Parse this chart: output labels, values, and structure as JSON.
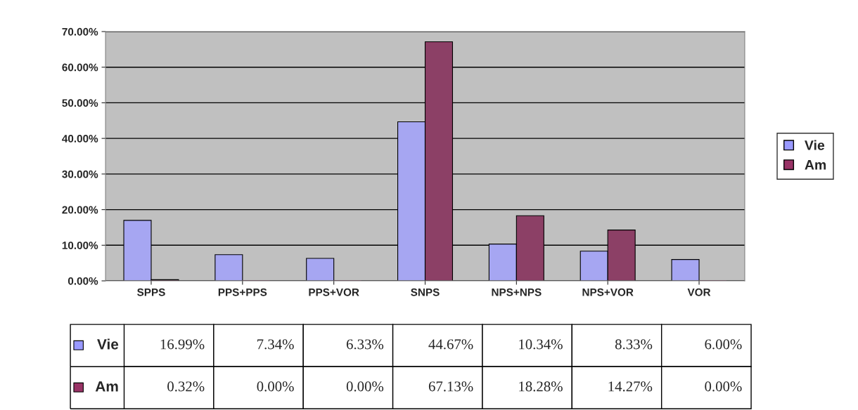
{
  "chart_data": {
    "type": "bar",
    "categories": [
      "SPPS",
      "PPS+PPS",
      "PPS+VOR",
      "SNPS",
      "NPS+NPS",
      "NPS+VOR",
      "VOR"
    ],
    "series": [
      {
        "name": "Vie",
        "color": "#9999ff",
        "values": [
          16.99,
          7.34,
          6.33,
          44.67,
          10.34,
          8.33,
          6.0
        ],
        "value_labels": [
          "16.99%",
          "7.34%",
          "6.33%",
          "44.67%",
          "10.34%",
          "8.33%",
          "6.00%"
        ]
      },
      {
        "name": "Am",
        "color": "#993366",
        "values": [
          0.32,
          0.0,
          0.0,
          67.13,
          18.28,
          14.27,
          0.0
        ],
        "value_labels": [
          "0.32%",
          "0.00%",
          "0.00%",
          "67.13%",
          "18.28%",
          "14.27%",
          "0.00%"
        ]
      }
    ],
    "ylim": [
      0,
      70
    ],
    "yticks": [
      {
        "value": 0,
        "label": "0.00%"
      },
      {
        "value": 10,
        "label": "10.00%"
      },
      {
        "value": 20,
        "label": "20.00%"
      },
      {
        "value": 30,
        "label": "30.00%"
      },
      {
        "value": 40,
        "label": "40.00%"
      },
      {
        "value": 50,
        "label": "50.00%"
      },
      {
        "value": 60,
        "label": "60.00%"
      },
      {
        "value": 70,
        "label": "70.00%"
      }
    ],
    "grid": "y",
    "legend": "right"
  }
}
